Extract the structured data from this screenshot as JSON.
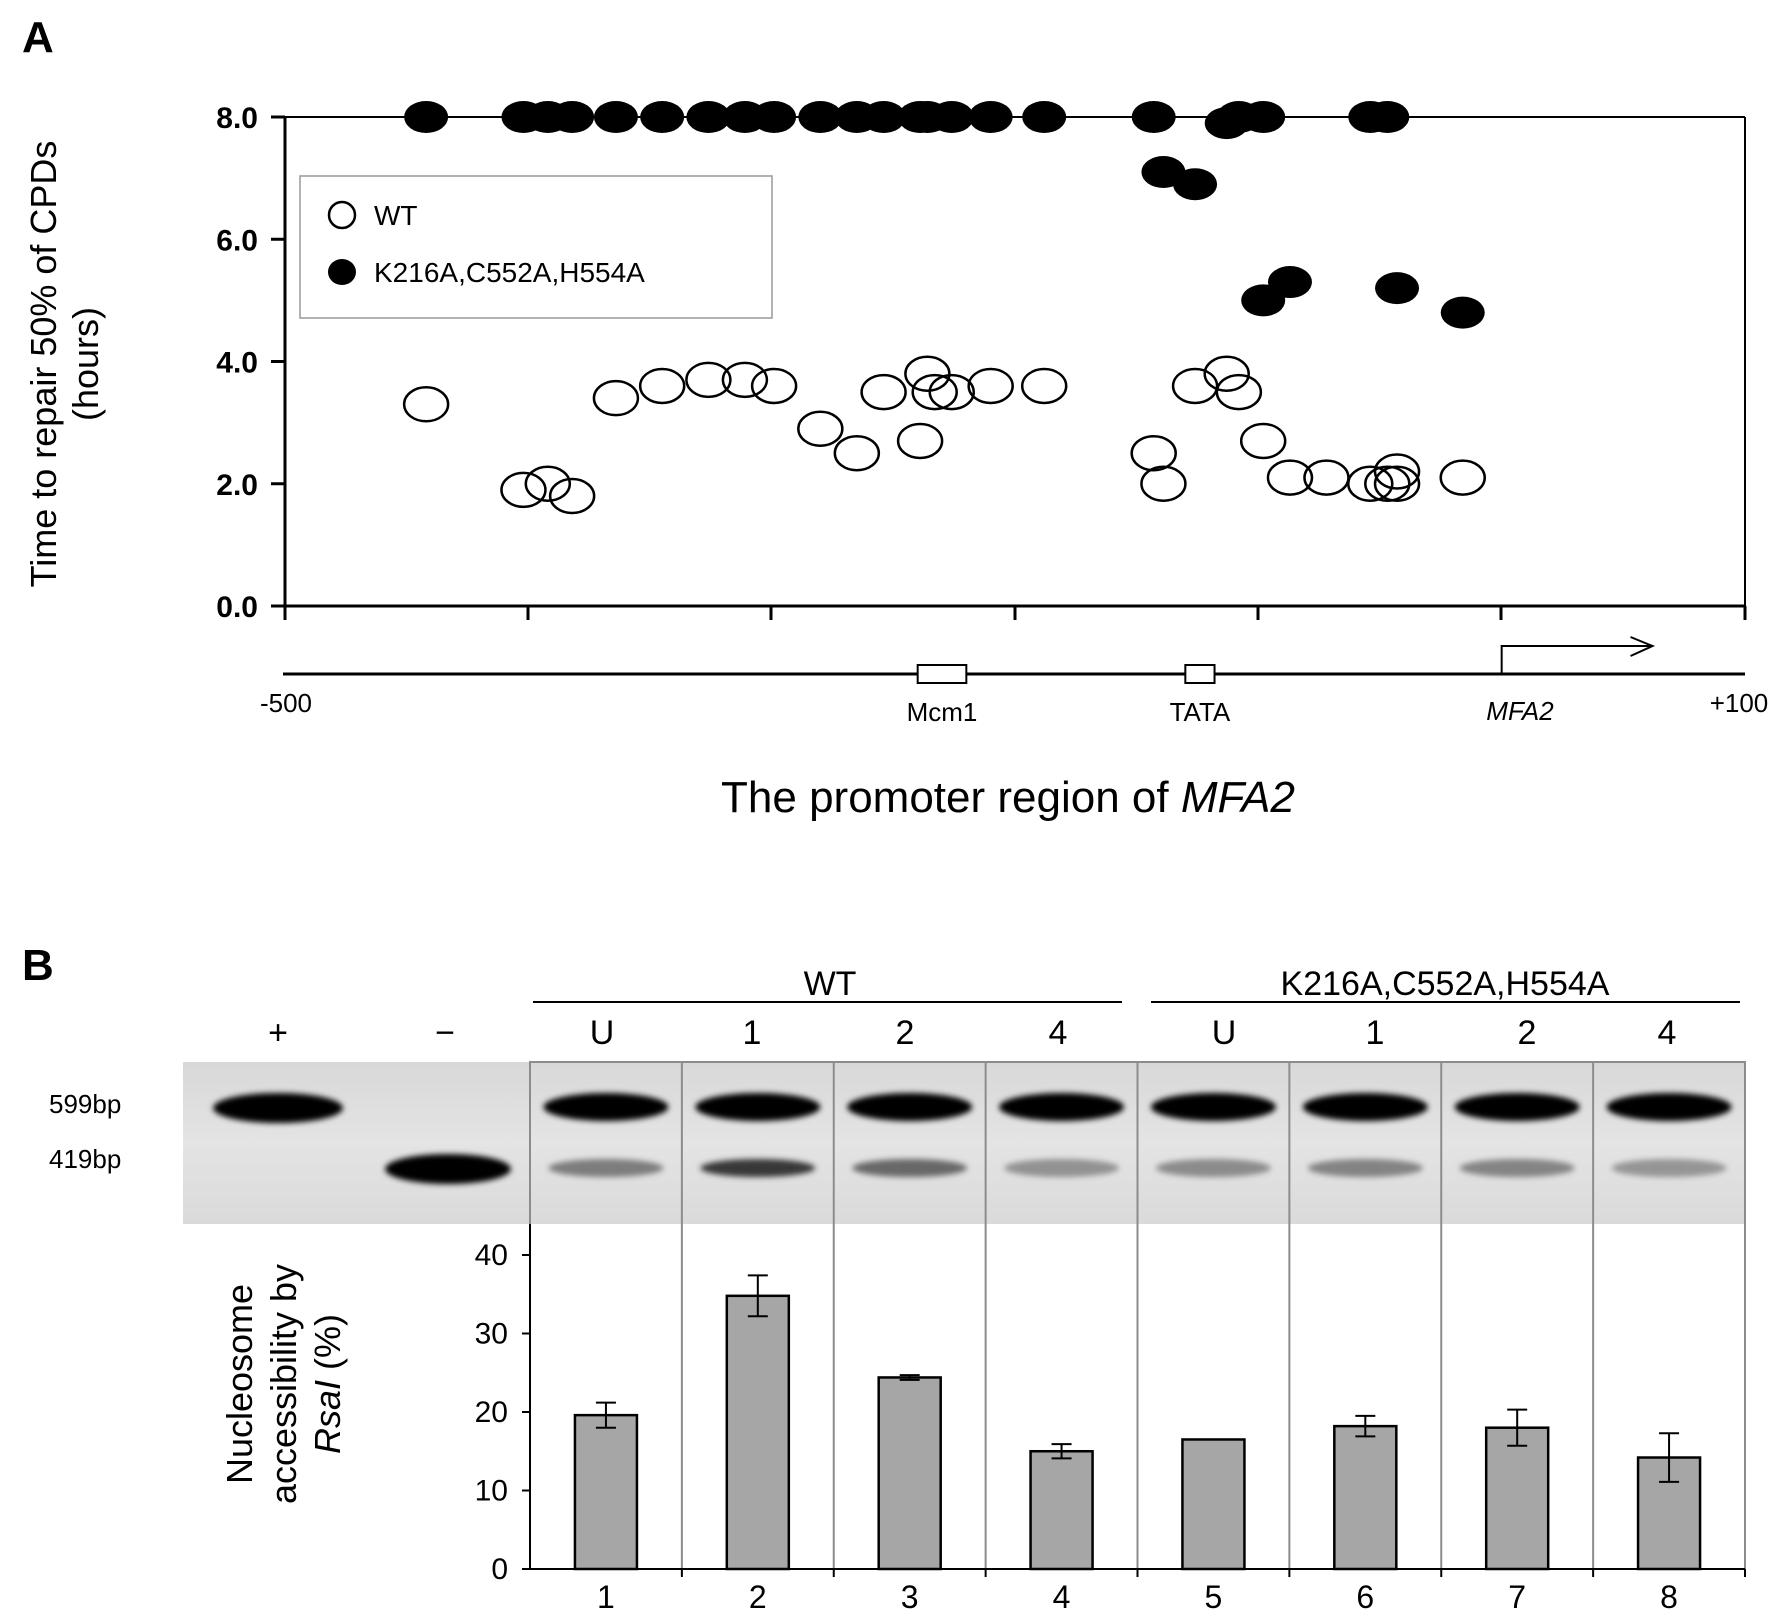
{
  "panel_a_label": "A",
  "panel_b_label": "B",
  "chart_data": [
    {
      "type": "scatter",
      "panel": "A",
      "ylabel_line1": "Time to repair 50% of CPDs",
      "ylabel_line2": "(hours)",
      "xlabel_prefix": "The promoter region of ",
      "xlabel_gene": "MFA2",
      "ylim": [
        0,
        8
      ],
      "yticks": [
        "0.0",
        "2.0",
        "4.0",
        "6.0",
        "8.0"
      ],
      "xlim": [
        -500,
        100
      ],
      "x_start_label": "-500",
      "x_end_label": "+100",
      "legend": {
        "wt": "WT",
        "mutant": "K216A,C552A,H554A",
        "placement": "upper-left"
      },
      "promoter_features": [
        {
          "name": "Mcm1",
          "start": -240,
          "end": -220
        },
        {
          "name": "TATA",
          "start": -130,
          "end": -118
        }
      ],
      "gene_label": "MFA2",
      "gene_arrow_from": 0,
      "gene_arrow_to": 62,
      "series": [
        {
          "name": "WT",
          "marker": "open-circle",
          "x": [
            -442,
            -402,
            -392,
            -382,
            -364,
            -345,
            -326,
            -311,
            -299,
            -280,
            -265,
            -254,
            -239,
            -236,
            -233,
            -226,
            -210,
            -188,
            -143,
            -139,
            -126,
            -113,
            -108,
            -98,
            -87,
            -72,
            -54,
            -47,
            -43,
            -43,
            -16
          ],
          "y": [
            3.3,
            1.9,
            2.0,
            1.8,
            3.4,
            3.6,
            3.7,
            3.7,
            3.6,
            2.9,
            2.5,
            3.5,
            2.7,
            3.8,
            3.5,
            3.5,
            3.6,
            3.6,
            2.5,
            2.0,
            3.6,
            3.8,
            3.5,
            2.7,
            2.1,
            2.1,
            2.0,
            2.0,
            2.2,
            2.0,
            2.1
          ]
        },
        {
          "name": "K216A,C552A,H554A",
          "marker": "filled-circle",
          "x": [
            -442,
            -402,
            -392,
            -382,
            -364,
            -345,
            -326,
            -311,
            -299,
            -280,
            -265,
            -254,
            -239,
            -236,
            -226,
            -210,
            -188,
            -143,
            -139,
            -126,
            -113,
            -108,
            -98,
            -98,
            -87,
            -54,
            -47,
            -43,
            -16
          ],
          "y": [
            8.0,
            8.0,
            8.0,
            8.0,
            8.0,
            8.0,
            8.0,
            8.0,
            8.0,
            8.0,
            8.0,
            8.0,
            8.0,
            8.0,
            8.0,
            8.0,
            8.0,
            8.0,
            7.1,
            6.9,
            7.9,
            8.0,
            8.0,
            5.0,
            5.3,
            8.0,
            8.0,
            5.2,
            4.8
          ]
        }
      ]
    },
    {
      "type": "bar",
      "panel": "B",
      "ylabel_line1": "Nucleosome",
      "ylabel_line2": "accessibility by",
      "ylabel_italic": "RsaI",
      "ylabel_suffix": " (%)",
      "ylim": [
        0,
        40
      ],
      "yticks": [
        "0",
        "10",
        "20",
        "30",
        "40"
      ],
      "categories": [
        "1",
        "2",
        "3",
        "4",
        "5",
        "6",
        "7",
        "8"
      ],
      "values": [
        19.6,
        34.8,
        24.4,
        15.0,
        16.5,
        18.2,
        18.0,
        14.2
      ],
      "errors": [
        1.6,
        2.6,
        0.3,
        0.9,
        0.0,
        1.3,
        2.3,
        3.1
      ],
      "bar_color": "#a6a6a6"
    }
  ],
  "gel": {
    "control_labels": [
      "+",
      "−"
    ],
    "groups": [
      {
        "name": "WT",
        "lanes": [
          "U",
          "1",
          "2",
          "4"
        ]
      },
      {
        "name": "K216A,C552A,H554A",
        "lanes": [
          "U",
          "1",
          "2",
          "4"
        ]
      }
    ],
    "bands": [
      "599bp",
      "419bp"
    ]
  }
}
